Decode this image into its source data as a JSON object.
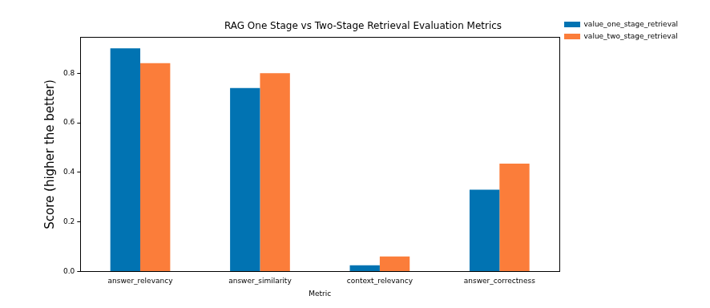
{
  "chart_data": {
    "type": "bar",
    "title": "RAG One Stage vs Two-Stage Retrieval Evaluation Metrics",
    "x_label": "Metric",
    "y_label": "Score (higher the better)",
    "categories": [
      "answer_relevancy",
      "answer_similarity",
      "context_relevancy",
      "answer_correctness"
    ],
    "series": [
      {
        "name": "value_one_stage_retrieval",
        "color": "#0173b2",
        "values": [
          0.9,
          0.74,
          0.025,
          0.33
        ]
      },
      {
        "name": "value_two_stage_retrieval",
        "color": "#fb7d3a",
        "values": [
          0.84,
          0.8,
          0.06,
          0.435
        ]
      }
    ],
    "ylim": [
      0,
      0.945
    ],
    "yticks": [
      {
        "value": 0,
        "label": "0.0"
      },
      0.2,
      0.4,
      0.6,
      0.8
    ],
    "grid": false,
    "legend": "upper right"
  }
}
